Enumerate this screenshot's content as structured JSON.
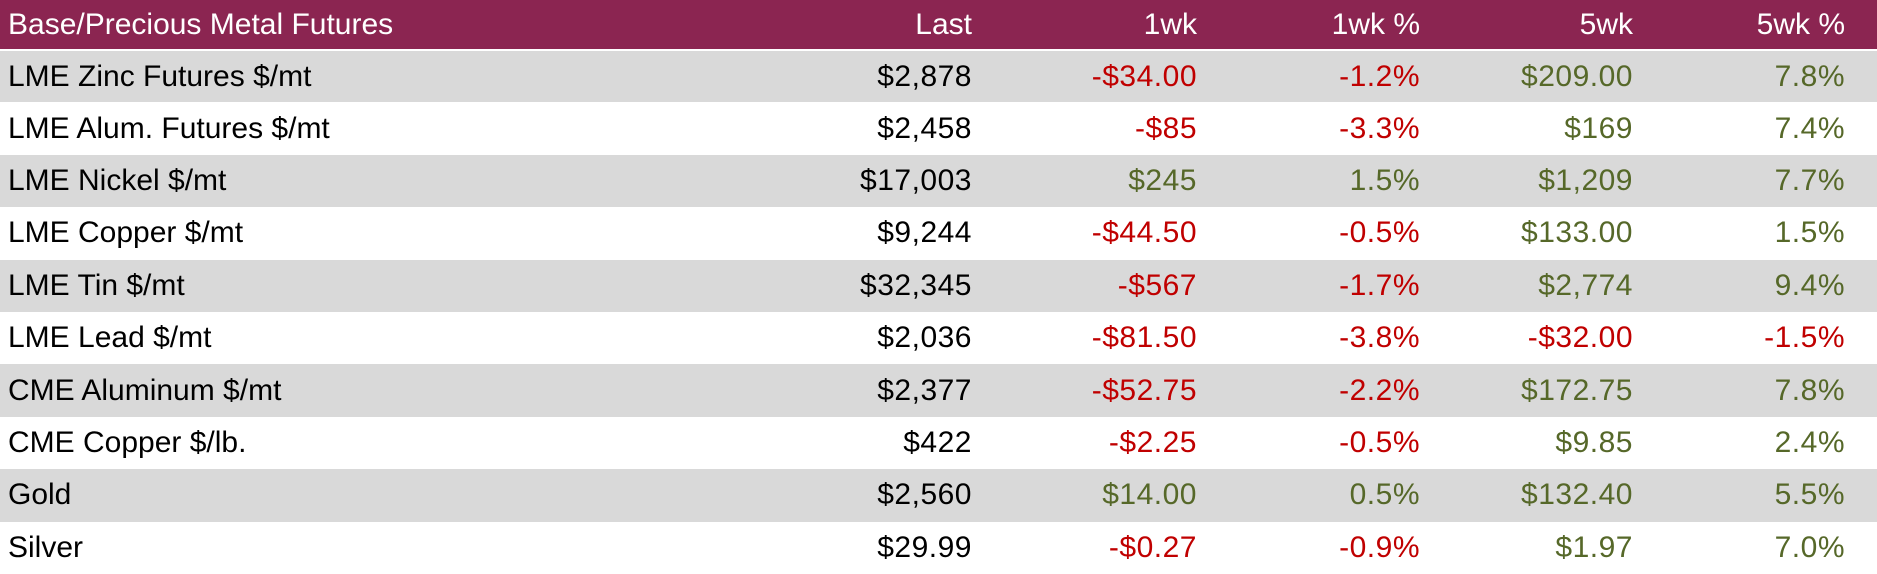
{
  "colors": {
    "header_bg": "#8B2551",
    "header_text": "#FFFFFF",
    "row_bg": "#FFFFFF",
    "row_alt_bg": "#D9D9D9",
    "text": "#000000",
    "negative": "#C00000",
    "positive": "#566829"
  },
  "chart_data": {
    "type": "table",
    "title": "Base/Precious Metal Futures",
    "columns": [
      "Last",
      "1wk",
      "1wk %",
      "5wk",
      "5wk %"
    ],
    "rows": [
      {
        "label": "LME Zinc Futures $/mt",
        "cells": [
          "$2,878",
          "-$34.00",
          "-1.2%",
          "$209.00",
          "7.8%"
        ]
      },
      {
        "label": "LME Alum. Futures $/mt",
        "cells": [
          "$2,458",
          "-$85",
          "-3.3%",
          "$169",
          "7.4%"
        ]
      },
      {
        "label": "LME Nickel $/mt",
        "cells": [
          "$17,003",
          "$245",
          "1.5%",
          "$1,209",
          "7.7%"
        ]
      },
      {
        "label": "LME Copper $/mt",
        "cells": [
          "$9,244",
          "-$44.50",
          "-0.5%",
          "$133.00",
          "1.5%"
        ]
      },
      {
        "label": "LME Tin $/mt",
        "cells": [
          "$32,345",
          "-$567",
          "-1.7%",
          "$2,774",
          "9.4%"
        ]
      },
      {
        "label": "LME Lead $/mt",
        "cells": [
          "$2,036",
          "-$81.50",
          "-3.8%",
          "-$32.00",
          "-1.5%"
        ]
      },
      {
        "label": "CME Aluminum $/mt",
        "cells": [
          "$2,377",
          "-$52.75",
          "-2.2%",
          "$172.75",
          "7.8%"
        ]
      },
      {
        "label": "CME Copper $/lb.",
        "cells": [
          "$422",
          "-$2.25",
          "-0.5%",
          "$9.85",
          "2.4%"
        ]
      },
      {
        "label": "Gold",
        "cells": [
          "$2,560",
          "$14.00",
          "0.5%",
          "$132.40",
          "5.5%"
        ]
      },
      {
        "label": "Silver",
        "cells": [
          "$29.99",
          "-$0.27",
          "-0.9%",
          "$1.97",
          "7.0%"
        ]
      }
    ]
  }
}
